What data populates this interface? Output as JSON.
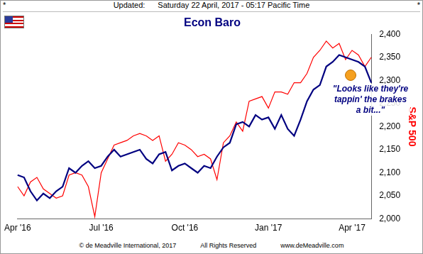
{
  "chart_data": {
    "type": "line",
    "header": [
      "*",
      "Updated:",
      "Saturday 22 April, 2017 - 05:17 Pacific Time",
      "*"
    ],
    "title": "Econ Baro",
    "annotation": "\"Looks like they're tappin' the brakes a bit...\"",
    "y_label": "S&P 500",
    "footer": [
      "© de Meadville International, 2017",
      "All Rights Reserved",
      "www.deMeadville.com"
    ],
    "categories": [
      "Apr '16",
      null,
      null,
      null,
      null,
      null,
      null,
      null,
      null,
      null,
      null,
      null,
      null,
      "Jul '16",
      null,
      null,
      null,
      null,
      null,
      null,
      null,
      null,
      null,
      null,
      null,
      null,
      "Oct '16",
      null,
      null,
      null,
      null,
      null,
      null,
      null,
      null,
      null,
      null,
      null,
      null,
      "Jan '17",
      null,
      null,
      null,
      null,
      null,
      null,
      null,
      null,
      null,
      null,
      null,
      null,
      "Apr '17",
      null,
      null,
      null
    ],
    "series": [
      {
        "name": "Econ Baro",
        "color": "#000080",
        "values": [
          2095,
          2090,
          2060,
          2040,
          2055,
          2045,
          2060,
          2070,
          2110,
          2100,
          2115,
          2125,
          2110,
          2115,
          2135,
          2150,
          2135,
          2140,
          2145,
          2150,
          2130,
          2120,
          2140,
          2145,
          2105,
          2115,
          2120,
          2110,
          2100,
          2115,
          2110,
          2135,
          2155,
          2165,
          2205,
          2210,
          2200,
          2225,
          2215,
          2220,
          2195,
          2225,
          2195,
          2180,
          2215,
          2255,
          2280,
          2290,
          2330,
          2340,
          2355,
          2350,
          2345,
          2340,
          2330,
          2295
        ]
      },
      {
        "name": "S&P 500",
        "color": "#ff0000",
        "values": [
          2070,
          2050,
          2080,
          2090,
          2065,
          2055,
          2045,
          2050,
          2095,
          2100,
          2095,
          2070,
          2005,
          2100,
          2130,
          2160,
          2165,
          2170,
          2180,
          2185,
          2180,
          2170,
          2180,
          2125,
          2140,
          2165,
          2160,
          2150,
          2135,
          2140,
          2130,
          2085,
          2165,
          2180,
          2210,
          2190,
          2255,
          2260,
          2265,
          2240,
          2275,
          2275,
          2270,
          2295,
          2295,
          2315,
          2350,
          2365,
          2385,
          2370,
          2380,
          2345,
          2365,
          2355,
          2330,
          2350
        ]
      }
    ],
    "ylim": [
      2000,
      2400
    ],
    "yticks": [
      2000,
      2050,
      2100,
      2150,
      2200,
      2250,
      2300,
      2350,
      2400
    ],
    "grid": false
  }
}
